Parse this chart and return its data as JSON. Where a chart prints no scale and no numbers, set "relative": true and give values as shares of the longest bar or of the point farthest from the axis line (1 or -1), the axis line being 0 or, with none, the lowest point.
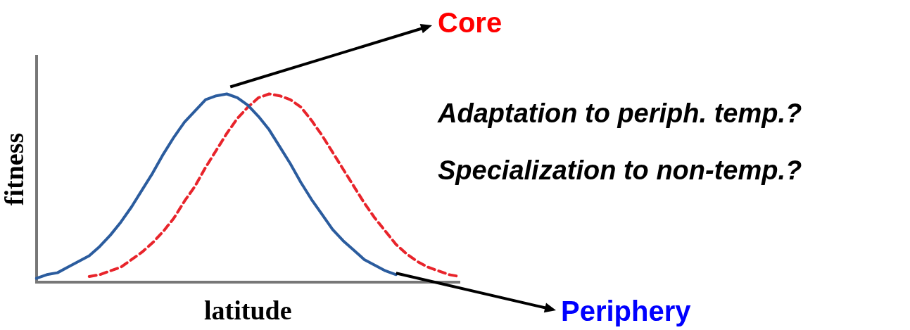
{
  "chart_data": {
    "type": "line",
    "relative": true,
    "xlabel": "latitude",
    "ylabel": "fitness",
    "categories": [
      null,
      null,
      null,
      null,
      null,
      null,
      null,
      null,
      null,
      null,
      null,
      null,
      null,
      null,
      null,
      null,
      null,
      null,
      null,
      null,
      null,
      null,
      null,
      null,
      null,
      null,
      null,
      null,
      null,
      null,
      null,
      null,
      null,
      null,
      null,
      null,
      null,
      null,
      null,
      null,
      null
    ],
    "series": [
      {
        "color": "#2b5c9e",
        "line_style": "solid",
        "values": [
          0.02,
          0.04,
          0.05,
          0.08,
          0.11,
          0.14,
          0.19,
          0.25,
          0.32,
          0.4,
          0.49,
          0.58,
          0.68,
          0.77,
          0.85,
          0.91,
          0.97,
          0.99,
          1,
          0.98,
          0.94,
          0.88,
          0.81,
          0.72,
          0.63,
          0.53,
          0.44,
          0.36,
          0.28,
          0.22,
          0.17,
          0.12,
          0.09,
          0.06,
          0.04,
          null,
          null,
          null,
          null,
          null,
          null
        ]
      },
      {
        "color": "#e8242b",
        "line_style": "dashed",
        "values": [
          null,
          null,
          null,
          null,
          null,
          0.03,
          0.04,
          0.06,
          0.08,
          0.12,
          0.16,
          0.21,
          0.27,
          0.34,
          0.43,
          0.51,
          0.61,
          0.7,
          0.79,
          0.87,
          0.93,
          0.98,
          1,
          0.99,
          0.97,
          0.93,
          0.86,
          0.78,
          0.69,
          0.6,
          0.51,
          0.42,
          0.34,
          0.27,
          0.2,
          0.15,
          0.11,
          0.08,
          0.06,
          0.04,
          0.03
        ]
      }
    ],
    "annotations": [
      "Core",
      "Periphery",
      "Adaptation to periph. temp.?",
      "Specialization to non-temp.?"
    ],
    "legend": false,
    "grid": false,
    "marker": "none"
  }
}
